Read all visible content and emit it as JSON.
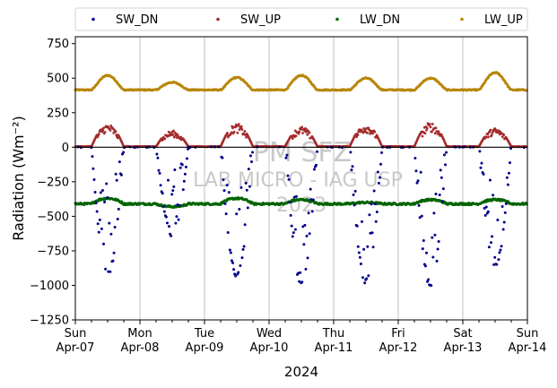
{
  "chart_data": {
    "type": "scatter",
    "x_date_range": [
      "2024-04-07",
      "2024-04-14"
    ],
    "xlabel": "2024",
    "ylabel": "Radiation (Wm⁻²)",
    "ylim": [
      -1250,
      800
    ],
    "yticks": [
      -1250,
      -1000,
      -750,
      -500,
      -250,
      0,
      250,
      500,
      750
    ],
    "ytick_labels": [
      "−1250",
      "−1000",
      "−750",
      "−500",
      "−250",
      "0",
      "250",
      "500",
      "750"
    ],
    "xticks": [
      {
        "top": "Sun",
        "bottom": "Apr-07"
      },
      {
        "top": "Mon",
        "bottom": "Apr-08"
      },
      {
        "top": "Tue",
        "bottom": "Apr-09"
      },
      {
        "top": "Wed",
        "bottom": "Apr-10"
      },
      {
        "top": "Thu",
        "bottom": "Apr-11"
      },
      {
        "top": "Fri",
        "bottom": "Apr-12"
      },
      {
        "top": "Sat",
        "bottom": "Apr-13"
      },
      {
        "top": "Sun",
        "bottom": "Apr-14"
      }
    ],
    "grid": "vertical",
    "legend_position": "top",
    "zero_line": true,
    "series": [
      {
        "name": "SW_DN",
        "color": "#00008b",
        "night_value": 0,
        "daily_peak_min": [
          -950,
          -650,
          -950,
          -1000,
          -1000,
          -1020,
          -880
        ]
      },
      {
        "name": "SW_UP",
        "color": "#a52a2a",
        "night_value": 5,
        "daily_peak": [
          170,
          120,
          170,
          150,
          170,
          180,
          140
        ]
      },
      {
        "name": "LW_DN",
        "color": "#006400",
        "night_value": -410,
        "daily_peak": [
          -370,
          -430,
          -370,
          -380,
          -400,
          -380,
          -380
        ]
      },
      {
        "name": "LW_UP",
        "color": "#b8860b",
        "night_value": 415,
        "daily_peak": [
          520,
          470,
          505,
          520,
          500,
          500,
          540
        ]
      }
    ]
  },
  "watermark": {
    "line1": "PM SFZ",
    "line2": "LAB MICRO - IAG USP",
    "line3": "2023"
  }
}
